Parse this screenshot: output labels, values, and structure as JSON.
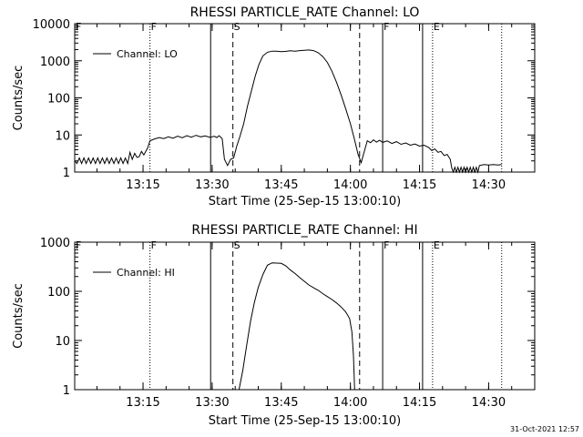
{
  "footer": {
    "timestamp": "31-Oct-2021 12:57"
  },
  "chart_data": [
    {
      "type": "line",
      "title": "RHESSI PARTICLE_RATE Channel: LO",
      "xlabel": "Start Time (25-Sep-15 13:00:10)",
      "ylabel": "Counts/sec",
      "yscale": "log",
      "xlim": [
        "13:00:10",
        "14:40:00"
      ],
      "ylim": [
        1,
        10000
      ],
      "x_ticks": [
        "13:15",
        "13:30",
        "13:45",
        "14:00",
        "14:15",
        "14:30"
      ],
      "y_ticks": [
        "1",
        "10",
        "100",
        "1000",
        "10000"
      ],
      "legend": {
        "placement": "top-left",
        "entries": [
          "Channel: LO"
        ]
      },
      "markers": [
        {
          "label": "F",
          "time": "13:00:10",
          "style": "dotted"
        },
        {
          "label": "F",
          "time": "13:16:30",
          "style": "dotted"
        },
        {
          "label": "",
          "time": "13:29:40",
          "style": "solid"
        },
        {
          "label": "S",
          "time": "13:34:30",
          "style": "dashed"
        },
        {
          "label": "",
          "time": "14:02:00",
          "style": "dashed"
        },
        {
          "label": "F",
          "time": "14:07:00",
          "style": "solid"
        },
        {
          "label": "",
          "time": "14:15:40",
          "style": "solid"
        },
        {
          "label": "E",
          "time": "14:17:50",
          "style": "dotted"
        },
        {
          "label": "",
          "time": "14:32:50",
          "style": "dotted"
        }
      ],
      "series": [
        {
          "values": [
            [
              "13:00:10",
              2
            ],
            [
              "13:00:40",
              1.7
            ],
            [
              "13:01:10",
              2.4
            ],
            [
              "13:01:40",
              1.7
            ],
            [
              "13:02:10",
              2.4
            ],
            [
              "13:02:40",
              1.7
            ],
            [
              "13:03:10",
              2.4
            ],
            [
              "13:03:40",
              1.7
            ],
            [
              "13:04:10",
              2.4
            ],
            [
              "13:04:40",
              1.7
            ],
            [
              "13:05:10",
              2.4
            ],
            [
              "13:05:40",
              1.7
            ],
            [
              "13:06:10",
              2.4
            ],
            [
              "13:06:40",
              1.7
            ],
            [
              "13:07:10",
              2.4
            ],
            [
              "13:07:40",
              1.7
            ],
            [
              "13:08:10",
              2.4
            ],
            [
              "13:08:40",
              1.7
            ],
            [
              "13:09:10",
              2.4
            ],
            [
              "13:09:40",
              1.7
            ],
            [
              "13:10:10",
              2.4
            ],
            [
              "13:10:40",
              1.7
            ],
            [
              "13:11:10",
              2.4
            ],
            [
              "13:11:40",
              1.7
            ],
            [
              "13:12:10",
              3.4
            ],
            [
              "13:12:40",
              2.2
            ],
            [
              "13:13:10",
              3.2
            ],
            [
              "13:13:40",
              2.5
            ],
            [
              "13:14:10",
              2.6
            ],
            [
              "13:14:40",
              3.6
            ],
            [
              "13:15:10",
              2.9
            ],
            [
              "13:16:00",
              4.5
            ],
            [
              "13:16:30",
              7
            ],
            [
              "13:17:30",
              7.8
            ],
            [
              "13:18:30",
              8.5
            ],
            [
              "13:19:30",
              8
            ],
            [
              "13:20:30",
              8.9
            ],
            [
              "13:21:30",
              8.2
            ],
            [
              "13:22:30",
              9.3
            ],
            [
              "13:23:30",
              8.4
            ],
            [
              "13:24:30",
              9.6
            ],
            [
              "13:25:30",
              8.7
            ],
            [
              "13:26:30",
              9.8
            ],
            [
              "13:27:30",
              8.9
            ],
            [
              "13:28:30",
              9.4
            ],
            [
              "13:29:30",
              8.6
            ],
            [
              "13:30:30",
              9.2
            ],
            [
              "13:31:00",
              8.5
            ],
            [
              "13:31:30",
              9.6
            ],
            [
              "13:32:10",
              8
            ],
            [
              "13:32:40",
              2.2
            ],
            [
              "13:33:20",
              1.5
            ],
            [
              "13:34:00",
              2.2
            ],
            [
              "13:34:40",
              2.4
            ],
            [
              "13:35:20",
              5
            ],
            [
              "13:36:00",
              9
            ],
            [
              "13:36:50",
              20
            ],
            [
              "13:37:40",
              60
            ],
            [
              "13:38:30",
              150
            ],
            [
              "13:39:20",
              380
            ],
            [
              "13:40:10",
              800
            ],
            [
              "13:41:00",
              1350
            ],
            [
              "13:42:00",
              1700
            ],
            [
              "13:43:00",
              1820
            ],
            [
              "13:44:00",
              1800
            ],
            [
              "13:45:00",
              1750
            ],
            [
              "13:46:00",
              1790
            ],
            [
              "13:47:00",
              1860
            ],
            [
              "13:48:00",
              1820
            ],
            [
              "13:49:00",
              1880
            ],
            [
              "13:50:00",
              1920
            ],
            [
              "13:51:00",
              1950
            ],
            [
              "13:52:00",
              1880
            ],
            [
              "13:53:00",
              1650
            ],
            [
              "13:54:00",
              1300
            ],
            [
              "13:55:00",
              900
            ],
            [
              "13:56:00",
              520
            ],
            [
              "13:57:00",
              260
            ],
            [
              "13:58:00",
              120
            ],
            [
              "13:59:00",
              50
            ],
            [
              "14:00:00",
              20
            ],
            [
              "14:00:50",
              8
            ],
            [
              "14:01:40",
              3
            ],
            [
              "14:02:20",
              1.8
            ],
            [
              "14:03:00",
              3.5
            ],
            [
              "14:03:40",
              7
            ],
            [
              "14:04:20",
              6.2
            ],
            [
              "14:05:00",
              7.4
            ],
            [
              "14:05:40",
              6.4
            ],
            [
              "14:06:20",
              7.2
            ],
            [
              "14:07:00",
              6.3
            ],
            [
              "14:08:00",
              6.9
            ],
            [
              "14:09:00",
              5.9
            ],
            [
              "14:10:00",
              6.6
            ],
            [
              "14:11:00",
              5.6
            ],
            [
              "14:12:00",
              6.1
            ],
            [
              "14:13:00",
              5.3
            ],
            [
              "14:14:00",
              5.7
            ],
            [
              "14:15:00",
              5
            ],
            [
              "14:16:00",
              5.3
            ],
            [
              "14:17:00",
              4.6
            ],
            [
              "14:17:40",
              3.8
            ],
            [
              "14:18:20",
              4.2
            ],
            [
              "14:19:00",
              3.4
            ],
            [
              "14:19:40",
              3.6
            ],
            [
              "14:20:20",
              2.8
            ],
            [
              "14:21:00",
              3
            ],
            [
              "14:21:40",
              2.2
            ],
            [
              "14:22:00",
              1.3
            ],
            [
              "14:22:20",
              1
            ],
            [
              "14:22:40",
              1.35
            ],
            [
              "14:23:00",
              1
            ],
            [
              "14:23:20",
              1.35
            ],
            [
              "14:23:40",
              1
            ],
            [
              "14:24:00",
              1.35
            ],
            [
              "14:24:20",
              1
            ],
            [
              "14:24:40",
              1.35
            ],
            [
              "14:25:00",
              1
            ],
            [
              "14:25:20",
              1.35
            ],
            [
              "14:25:40",
              1
            ],
            [
              "14:26:00",
              1.35
            ],
            [
              "14:26:20",
              1
            ],
            [
              "14:26:40",
              1.35
            ],
            [
              "14:27:00",
              1
            ],
            [
              "14:27:20",
              1.35
            ],
            [
              "14:27:40",
              1
            ],
            [
              "14:28:00",
              1.5
            ],
            [
              "14:29:00",
              1.6
            ],
            [
              "14:30:00",
              1.55
            ],
            [
              "14:31:00",
              1.6
            ],
            [
              "14:32:00",
              1.55
            ],
            [
              "14:32:50",
              1.6
            ]
          ]
        }
      ]
    },
    {
      "type": "line",
      "title": "RHESSI PARTICLE_RATE Channel: HI",
      "xlabel": "Start Time (25-Sep-15 13:00:10)",
      "ylabel": "Counts/sec",
      "yscale": "log",
      "xlim": [
        "13:00:10",
        "14:40:00"
      ],
      "ylim": [
        1,
        1000
      ],
      "x_ticks": [
        "13:15",
        "13:30",
        "13:45",
        "14:00",
        "14:15",
        "14:30"
      ],
      "y_ticks": [
        "1",
        "10",
        "100",
        "1000"
      ],
      "legend": {
        "placement": "top-left",
        "entries": [
          "Channel: HI"
        ]
      },
      "markers": [
        {
          "label": "F",
          "time": "13:00:10",
          "style": "dotted"
        },
        {
          "label": "F",
          "time": "13:16:30",
          "style": "dotted"
        },
        {
          "label": "",
          "time": "13:29:40",
          "style": "solid"
        },
        {
          "label": "S",
          "time": "13:34:30",
          "style": "dashed"
        },
        {
          "label": "",
          "time": "14:02:00",
          "style": "dashed"
        },
        {
          "label": "F",
          "time": "14:07:00",
          "style": "solid"
        },
        {
          "label": "",
          "time": "14:15:40",
          "style": "solid"
        },
        {
          "label": "E",
          "time": "14:17:50",
          "style": "dotted"
        },
        {
          "label": "",
          "time": "14:32:50",
          "style": "dotted"
        }
      ],
      "series": [
        {
          "values": [
            [
              "13:35:50",
              1
            ],
            [
              "13:36:40",
              2.5
            ],
            [
              "13:37:30",
              8
            ],
            [
              "13:38:20",
              25
            ],
            [
              "13:39:10",
              60
            ],
            [
              "13:40:00",
              120
            ],
            [
              "13:41:00",
              220
            ],
            [
              "13:42:00",
              340
            ],
            [
              "13:43:00",
              380
            ],
            [
              "13:44:00",
              375
            ],
            [
              "13:45:00",
              370
            ],
            [
              "13:46:00",
              330
            ],
            [
              "13:47:00",
              270
            ],
            [
              "13:48:00",
              230
            ],
            [
              "13:49:00",
              190
            ],
            [
              "13:50:00",
              160
            ],
            [
              "13:51:00",
              135
            ],
            [
              "13:52:00",
              118
            ],
            [
              "13:53:00",
              105
            ],
            [
              "13:54:00",
              90
            ],
            [
              "13:55:00",
              78
            ],
            [
              "13:56:00",
              68
            ],
            [
              "13:57:00",
              58
            ],
            [
              "13:58:00",
              48
            ],
            [
              "13:59:00",
              38
            ],
            [
              "13:59:50",
              28
            ],
            [
              "14:00:20",
              15
            ],
            [
              "14:00:40",
              5
            ],
            [
              "14:00:55",
              1
            ]
          ]
        }
      ]
    }
  ]
}
